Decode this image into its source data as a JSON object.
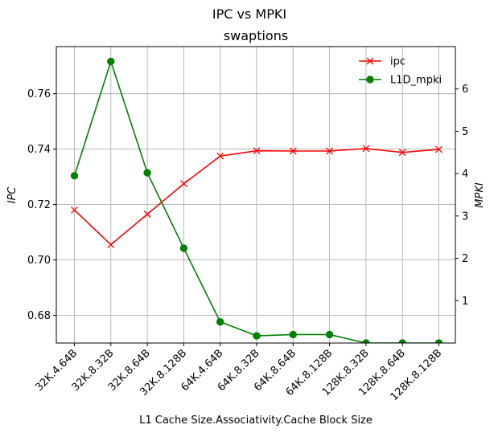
{
  "chart_data": {
    "type": "line",
    "suptitle": "IPC vs MPKI",
    "title": "swaptions",
    "xlabel": "L1 Cache Size.Associativity.Cache Block Size",
    "ylabel_left": "IPC",
    "ylabel_right": "MPKI",
    "categories": [
      "32K.4.64B",
      "32K.8.32B",
      "32K.8.64B",
      "32K.8.128B",
      "64K.4.64B",
      "64K.8.32B",
      "64K.8.64B",
      "64K.8.128B",
      "128K.8.32B",
      "128K.8.64B",
      "128K.8.128B"
    ],
    "ylim_left": [
      0.67,
      0.777
    ],
    "ylim_right": [
      0.0,
      7.0
    ],
    "yticks_left": [
      "0.68",
      "0.70",
      "0.72",
      "0.74",
      "0.76"
    ],
    "yticks_right": [
      "1",
      "2",
      "3",
      "4",
      "5",
      "6"
    ],
    "grid": true,
    "legend_placement": "top-right",
    "series": [
      {
        "name": "ipc",
        "axis": "left",
        "color": "#ff0000",
        "marker": "x",
        "values": [
          0.718,
          0.7055,
          0.7165,
          0.7275,
          0.7375,
          0.7394,
          0.7393,
          0.7393,
          0.7402,
          0.7388,
          0.7399
        ]
      },
      {
        "name": "L1D_mpki",
        "axis": "right",
        "color": "#008000",
        "marker": "o",
        "values": [
          3.95,
          6.65,
          4.02,
          2.24,
          0.5,
          0.17,
          0.2,
          0.2,
          0.0,
          0.0,
          0.0
        ]
      }
    ]
  }
}
